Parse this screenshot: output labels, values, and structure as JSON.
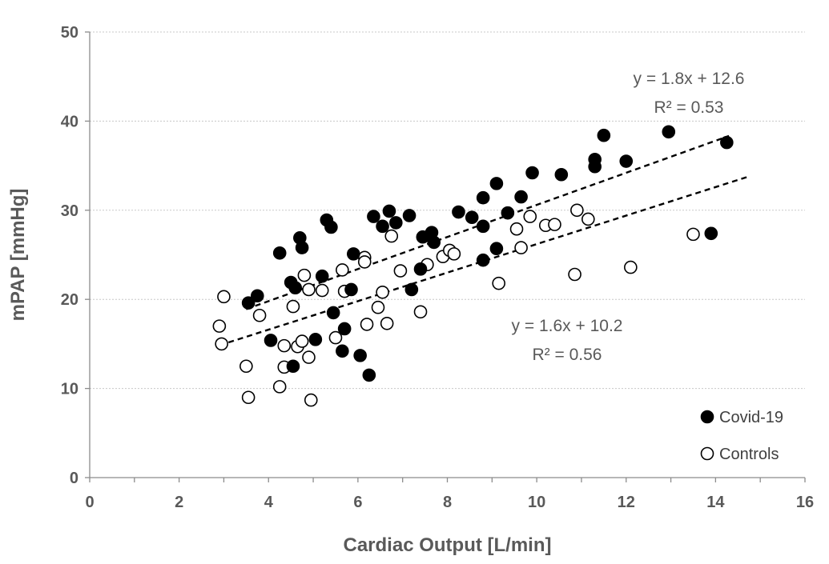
{
  "chart_data": {
    "type": "scatter",
    "title": "",
    "xlabel": "Cardiac Output [L/min]",
    "ylabel": "mPAP [mmHg]",
    "xlim": [
      0,
      16
    ],
    "ylim": [
      0,
      50
    ],
    "x_ticks": [
      0,
      2,
      4,
      6,
      8,
      10,
      12,
      14,
      16
    ],
    "y_ticks": [
      0,
      10,
      20,
      30,
      40,
      50
    ],
    "grid": "horizontal dotted",
    "legend_position": "bottom-right",
    "series": [
      {
        "name": "Covid-19",
        "marker": "filled-circle",
        "color": "#000000",
        "trendline": {
          "label": "y = 1.8x + 12.6",
          "r2": "R² = 0.53",
          "slope": 1.8,
          "intercept": 12.6,
          "x_range": [
            3.5,
            14.3
          ]
        },
        "points": [
          [
            3.55,
            19.6
          ],
          [
            3.75,
            20.4
          ],
          [
            4.05,
            15.4
          ],
          [
            4.25,
            25.2
          ],
          [
            4.5,
            21.9
          ],
          [
            4.55,
            12.5
          ],
          [
            4.6,
            21.3
          ],
          [
            4.7,
            26.9
          ],
          [
            4.75,
            25.8
          ],
          [
            5.05,
            15.5
          ],
          [
            5.2,
            22.6
          ],
          [
            5.3,
            28.9
          ],
          [
            5.4,
            28.1
          ],
          [
            5.45,
            18.5
          ],
          [
            5.65,
            14.2
          ],
          [
            5.7,
            16.7
          ],
          [
            5.85,
            21.1
          ],
          [
            5.9,
            25.1
          ],
          [
            6.05,
            13.7
          ],
          [
            6.25,
            11.5
          ],
          [
            6.35,
            29.3
          ],
          [
            6.55,
            28.2
          ],
          [
            6.7,
            29.9
          ],
          [
            6.85,
            28.6
          ],
          [
            7.15,
            29.4
          ],
          [
            7.2,
            21.1
          ],
          [
            7.4,
            23.4
          ],
          [
            7.45,
            27.0
          ],
          [
            7.65,
            27.5
          ],
          [
            7.7,
            26.4
          ],
          [
            8.25,
            29.8
          ],
          [
            8.55,
            29.2
          ],
          [
            8.8,
            31.4
          ],
          [
            8.8,
            28.2
          ],
          [
            8.8,
            24.4
          ],
          [
            9.1,
            33.0
          ],
          [
            9.1,
            25.7
          ],
          [
            9.35,
            29.7
          ],
          [
            9.65,
            31.5
          ],
          [
            9.9,
            34.2
          ],
          [
            10.55,
            34.0
          ],
          [
            11.3,
            35.7
          ],
          [
            11.3,
            34.9
          ],
          [
            11.5,
            38.4
          ],
          [
            12.0,
            35.5
          ],
          [
            12.95,
            38.8
          ],
          [
            13.9,
            27.4
          ],
          [
            14.25,
            37.6
          ]
        ]
      },
      {
        "name": "Controls",
        "marker": "open-circle",
        "color": "#000000",
        "trendline": {
          "label": "y = 1.6x + 10.2",
          "r2": "R² = 0.56",
          "slope": 1.6,
          "intercept": 10.2,
          "x_range": [
            2.9,
            14.7
          ]
        },
        "points": [
          [
            2.9,
            17.0
          ],
          [
            2.95,
            15.0
          ],
          [
            3.0,
            20.3
          ],
          [
            3.5,
            12.5
          ],
          [
            3.55,
            9.0
          ],
          [
            3.8,
            18.2
          ],
          [
            4.25,
            10.2
          ],
          [
            4.35,
            14.8
          ],
          [
            4.35,
            12.4
          ],
          [
            4.55,
            19.2
          ],
          [
            4.65,
            14.7
          ],
          [
            4.75,
            15.3
          ],
          [
            4.8,
            22.7
          ],
          [
            4.9,
            13.5
          ],
          [
            4.9,
            21.1
          ],
          [
            4.95,
            8.7
          ],
          [
            5.2,
            21.0
          ],
          [
            5.5,
            15.7
          ],
          [
            5.65,
            23.3
          ],
          [
            5.7,
            20.9
          ],
          [
            6.15,
            24.7
          ],
          [
            6.15,
            24.2
          ],
          [
            6.2,
            17.2
          ],
          [
            6.45,
            19.1
          ],
          [
            6.55,
            20.8
          ],
          [
            6.65,
            17.3
          ],
          [
            6.75,
            27.1
          ],
          [
            6.95,
            23.2
          ],
          [
            7.4,
            18.6
          ],
          [
            7.55,
            23.9
          ],
          [
            7.9,
            24.8
          ],
          [
            8.05,
            25.5
          ],
          [
            8.15,
            25.1
          ],
          [
            9.15,
            21.8
          ],
          [
            9.55,
            27.9
          ],
          [
            9.65,
            25.8
          ],
          [
            9.85,
            29.3
          ],
          [
            10.2,
            28.3
          ],
          [
            10.4,
            28.4
          ],
          [
            10.85,
            22.8
          ],
          [
            10.9,
            30.0
          ],
          [
            11.15,
            29.0
          ],
          [
            12.1,
            23.6
          ],
          [
            13.5,
            27.3
          ]
        ]
      }
    ]
  }
}
